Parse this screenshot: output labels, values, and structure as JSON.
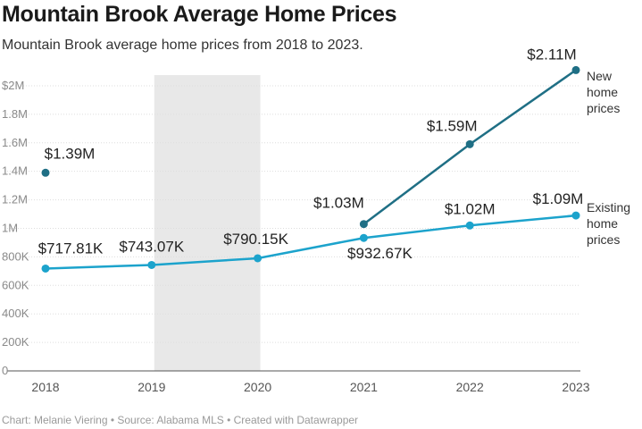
{
  "title": "Mountain Brook Average Home Prices",
  "subtitle": "Mountain Brook average home prices from 2018 to 2023.",
  "footer": "Chart: Melanie Viering • Source: Alabama MLS • Created with Datawrapper",
  "colors": {
    "new": "#1f6f85",
    "existing": "#1ca3cc",
    "shade": "#e8e8e8",
    "grid": "#dddddd"
  },
  "chart_data": {
    "type": "line",
    "title": "Mountain Brook Average Home Prices",
    "subtitle": "Mountain Brook average home prices from 2018 to 2023.",
    "x": [
      2018,
      2019,
      2020,
      2021,
      2022,
      2023
    ],
    "x_tick_labels": [
      "2018",
      "2019",
      "2020",
      "2021",
      "2022",
      "2023"
    ],
    "ylim": [
      0,
      2100000
    ],
    "y_ticks": [
      0,
      200000,
      400000,
      600000,
      800000,
      1000000,
      1200000,
      1400000,
      1600000,
      1800000,
      2000000
    ],
    "y_tick_labels": [
      "0",
      "200K",
      "400K",
      "600K",
      "800K",
      "1M",
      "1.2M",
      "1.4M",
      "1.6M",
      "1.8M",
      "$2M"
    ],
    "grid": "horizontal",
    "shaded_range": [
      2019,
      2020
    ],
    "series": [
      {
        "name": "New home prices",
        "label_lines": [
          "New",
          "home",
          "prices"
        ],
        "values": [
          1390000,
          null,
          null,
          1030000,
          1590000,
          2110000
        ],
        "value_labels": [
          "$1.39M",
          null,
          null,
          "$1.03M",
          "$1.59M",
          "$2.11M"
        ]
      },
      {
        "name": "Existing home prices",
        "label_lines": [
          "Existing",
          "home",
          "prices"
        ],
        "values": [
          717810,
          743070,
          790150,
          932670,
          1020000,
          1090000
        ],
        "value_labels": [
          "$717.81K",
          "$743.07K",
          "$790.15K",
          "$932.67K",
          "$1.02M",
          "$1.09M"
        ]
      }
    ]
  }
}
